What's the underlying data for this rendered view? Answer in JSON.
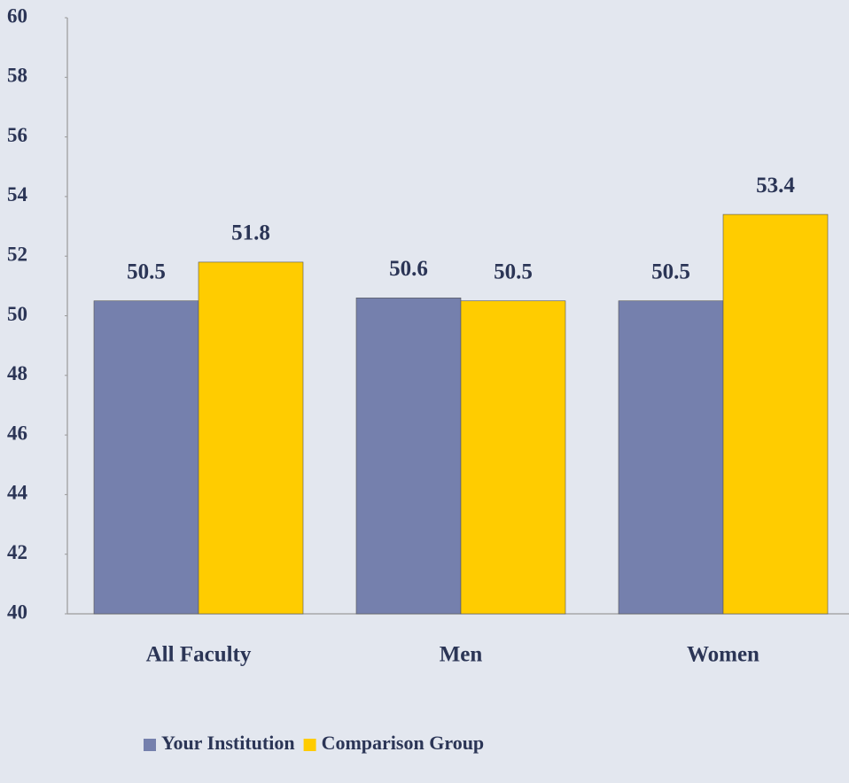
{
  "chart_data": {
    "type": "bar",
    "categories": [
      "All Faculty",
      "Men",
      "Women"
    ],
    "series": [
      {
        "name": "Your Institution",
        "color": "#7580ad",
        "values": [
          50.5,
          50.6,
          50.5
        ]
      },
      {
        "name": "Comparison Group",
        "color": "#ffcc00",
        "values": [
          51.8,
          50.5,
          53.4
        ]
      }
    ],
    "ylim": [
      40,
      60
    ],
    "yticks": [
      40,
      42,
      44,
      46,
      48,
      50,
      52,
      54,
      56,
      58,
      60
    ],
    "grid": false,
    "legend": "bottom"
  }
}
